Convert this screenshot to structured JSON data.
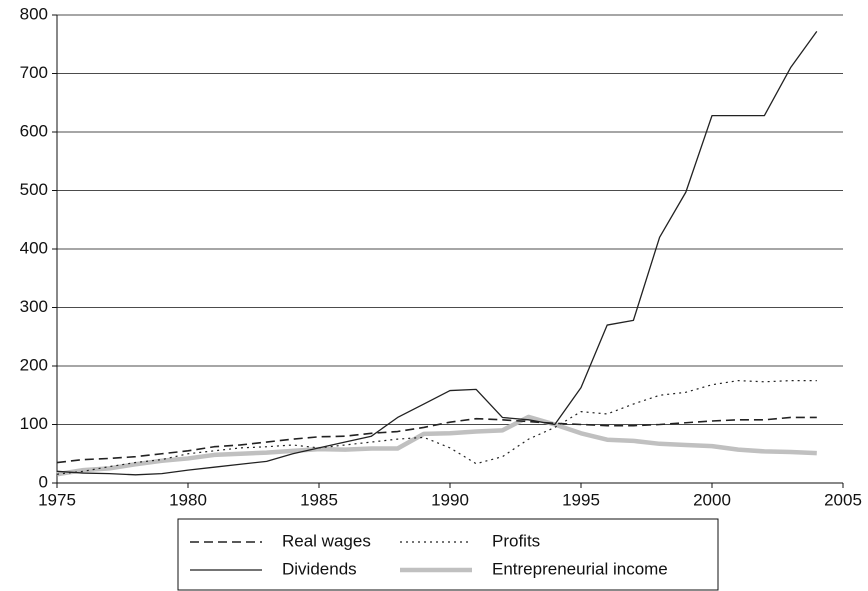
{
  "chart_data": {
    "type": "line",
    "x": [
      1975,
      1976,
      1977,
      1978,
      1979,
      1980,
      1981,
      1982,
      1983,
      1984,
      1985,
      1986,
      1987,
      1988,
      1989,
      1990,
      1991,
      1992,
      1993,
      1994,
      1995,
      1996,
      1997,
      1998,
      1999,
      2000,
      2001,
      2002,
      2003,
      2004
    ],
    "series": [
      {
        "name": "Real wages",
        "color": "#222222",
        "style": "dashed",
        "values": [
          35,
          40,
          42,
          45,
          50,
          55,
          62,
          65,
          70,
          75,
          79,
          80,
          85,
          88,
          95,
          104,
          110,
          108,
          105,
          102,
          100,
          98,
          98,
          100,
          103,
          106,
          108,
          108,
          112,
          112
        ]
      },
      {
        "name": "Profits",
        "color": "#222222",
        "style": "dotted",
        "values": [
          15,
          20,
          28,
          35,
          40,
          50,
          55,
          60,
          62,
          65,
          60,
          65,
          70,
          75,
          78,
          60,
          33,
          45,
          75,
          95,
          122,
          118,
          135,
          150,
          155,
          168,
          175,
          173,
          175,
          175
        ]
      },
      {
        "name": "Dividends",
        "color": "#222222",
        "style": "solid",
        "values": [
          20,
          17,
          16,
          14,
          16,
          22,
          27,
          32,
          37,
          50,
          60,
          70,
          80,
          112,
          135,
          158,
          160,
          112,
          108,
          100,
          163,
          270,
          278,
          420,
          497,
          628,
          628,
          628,
          710,
          772
        ]
      },
      {
        "name": "Entrepreneurial income",
        "color": "#c0c0c0",
        "style": "thick",
        "values": [
          15,
          22,
          25,
          32,
          38,
          42,
          48,
          50,
          52,
          55,
          58,
          57,
          59,
          59,
          84,
          85,
          88,
          90,
          113,
          100,
          85,
          74,
          72,
          67,
          65,
          63,
          57,
          54,
          53,
          51
        ]
      }
    ],
    "xlim": [
      1975,
      2005
    ],
    "xticks": [
      1975,
      1980,
      1985,
      1990,
      1995,
      2000,
      2005
    ],
    "ylim": [
      0,
      800
    ],
    "yticks": [
      0,
      100,
      200,
      300,
      400,
      500,
      600,
      700,
      800
    ],
    "grid": true,
    "legend": "bottom"
  }
}
